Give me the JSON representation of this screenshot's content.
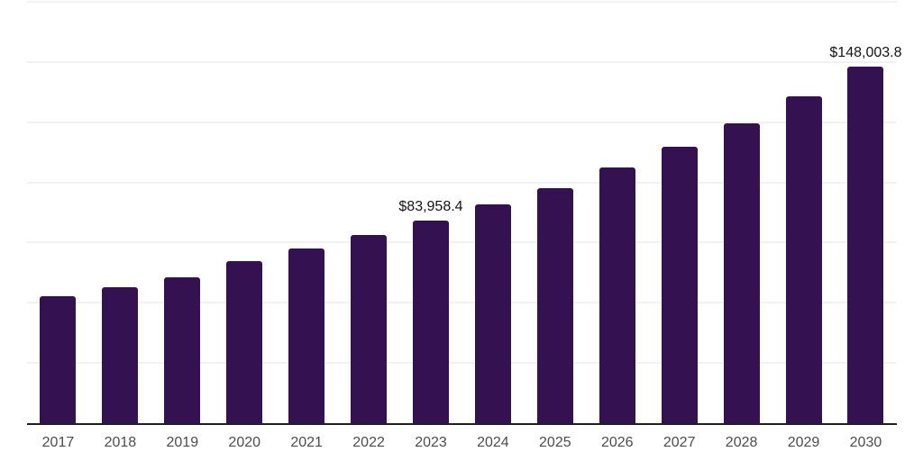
{
  "chart_data": {
    "type": "bar",
    "title": "",
    "xlabel": "",
    "ylabel": "",
    "categories": [
      "2017",
      "2018",
      "2019",
      "2020",
      "2021",
      "2022",
      "2023",
      "2024",
      "2025",
      "2026",
      "2027",
      "2028",
      "2029",
      "2030"
    ],
    "values": [
      52900,
      56600,
      60700,
      67400,
      72500,
      78000,
      83958.4,
      90800,
      97600,
      106100,
      114800,
      124700,
      135900,
      148003.8
    ],
    "point_labels": {
      "2023": "$83,958.4",
      "2030": "$148,003.8"
    },
    "ylim": [
      0,
      175000
    ],
    "gridline_step": 25000,
    "grid": "horizontal-only",
    "y_axis_tick_labels_visible": false,
    "legend": "none"
  },
  "style": {
    "background": "#ffffff",
    "bar_color": "#341151",
    "grid_color": "#f2f2f2",
    "axis_color": "#1f1f1f",
    "tick_label_color": "#4d4d4d",
    "data_label_color": "#141414"
  }
}
